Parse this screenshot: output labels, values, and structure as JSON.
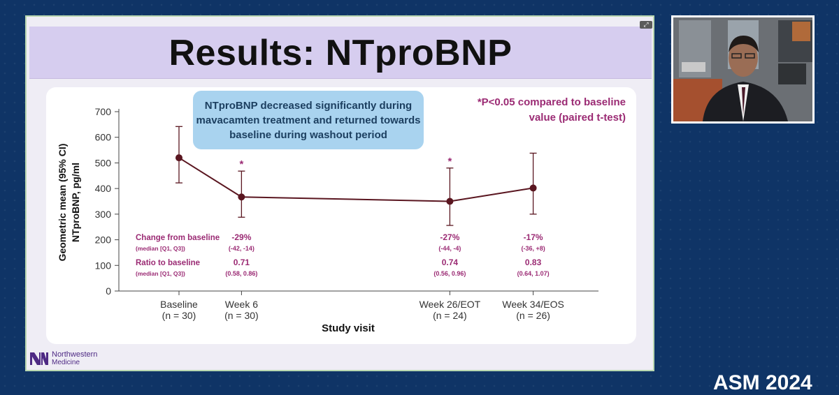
{
  "slide": {
    "title": "Results: NTproBNP",
    "callout": "NTproBNP decreased significantly during mavacamten treatment and returned towards baseline during washout period",
    "significance_note": "*P<0.05 compared to baseline value (paired t-test)",
    "logo_line1": "Northwestern",
    "logo_line2": "Medicine",
    "expand_glyph": "⤢"
  },
  "colors": {
    "series": "#5a1620",
    "annotation": "#9b2b74",
    "callout_bg": "#a9d3ef",
    "title_band": "#d6cdef",
    "page_bg": "#0f3466"
  },
  "chart_data": {
    "type": "line",
    "xlabel": "Study visit",
    "ylabel_line1": "Geometric mean (95% CI)",
    "ylabel_line2": "NTproBNP, pg/ml",
    "ylim": [
      0,
      700
    ],
    "yticks": [
      0,
      100,
      200,
      300,
      400,
      500,
      600,
      700
    ],
    "grid": false,
    "x_ticks": [
      {
        "label": "Baseline",
        "n": "(n = 30)",
        "week": 0
      },
      {
        "label": "Week 6",
        "n": "(n = 30)",
        "week": 6
      },
      {
        "label": "Week 26/EOT",
        "n": "(n = 24)",
        "week": 26
      },
      {
        "label": "Week 34/EOS",
        "n": "(n = 26)",
        "week": 34
      }
    ],
    "series": [
      {
        "points": [
          {
            "week": 0,
            "y": 520,
            "lo": 422,
            "hi": 642,
            "sig": false
          },
          {
            "week": 6,
            "y": 367,
            "lo": 288,
            "hi": 468,
            "sig": true
          },
          {
            "week": 26,
            "y": 350,
            "lo": 256,
            "hi": 480,
            "sig": true
          },
          {
            "week": 34,
            "y": 402,
            "lo": 300,
            "hi": 538,
            "sig": false
          }
        ]
      }
    ],
    "sig_marker": "*",
    "annotation_rows": [
      {
        "label": "Change from baseline",
        "sublabel": "(median [Q1, Q3])",
        "values": [
          {
            "week": 6,
            "value": "-29%",
            "range": "(-42, -14)"
          },
          {
            "week": 26,
            "value": "-27%",
            "range": "(-44, -4)"
          },
          {
            "week": 34,
            "value": "-17%",
            "range": "(-36, +8)"
          }
        ]
      },
      {
        "label": "Ratio to baseline",
        "sublabel": "(median [Q1, Q3])",
        "values": [
          {
            "week": 6,
            "value": "0.71",
            "range": "(0.58, 0.86)"
          },
          {
            "week": 26,
            "value": "0.74",
            "range": "(0.56, 0.96)"
          },
          {
            "week": 34,
            "value": "0.83",
            "range": "(0.64, 1.07)"
          }
        ]
      }
    ]
  },
  "overlay": {
    "conference_mark": "ASM 2024"
  }
}
